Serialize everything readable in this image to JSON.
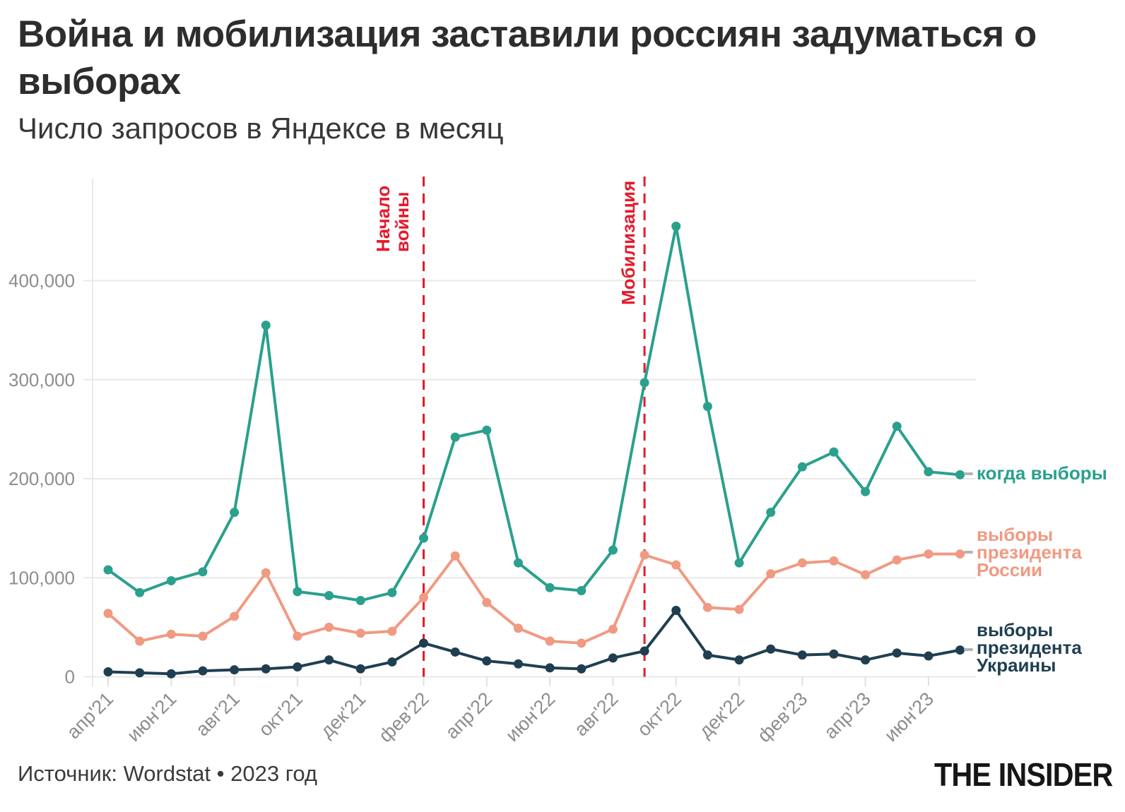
{
  "header": {
    "title": "Война и мобилизация заставили россиян задуматься о выборах",
    "subtitle": "Число запросов в Яндексе в месяц"
  },
  "footer": {
    "source": "Источник: Wordstat • 2023 год",
    "logo": "THE INSIDER"
  },
  "colors": {
    "series_kogda_vybory": "#2aa08d",
    "series_vybory_rossii": "#f09a82",
    "series_vybory_ukrainy": "#1f3f50",
    "event_line": "#e41a2c",
    "grid": "#e8e8e8",
    "axis_labels": "#8d8d8d"
  },
  "chart_data": {
    "type": "line",
    "x": [
      "апр'21",
      "май'21",
      "июн'21",
      "июл'21",
      "авг'21",
      "сен'21",
      "окт'21",
      "ноя'21",
      "дек'21",
      "янв'22",
      "фев'22",
      "мар'22",
      "апр'22",
      "май'22",
      "июн'22",
      "июл'22",
      "авг'22",
      "сен'22",
      "окт'22",
      "ноя'22",
      "дек'22",
      "янв'23",
      "фев'23",
      "мар'23",
      "апр'23",
      "май'23",
      "июн'23",
      "июл'23"
    ],
    "x_tick_every": 2,
    "x_tick_labels": [
      "апр'21",
      "июн'21",
      "авг'21",
      "окт'21",
      "дек'21",
      "фев'22",
      "апр'22",
      "июн'22",
      "авг'22",
      "окт'22",
      "дек'22",
      "фев'23",
      "апр'23",
      "июн'23"
    ],
    "series": [
      {
        "name": "когда выборы",
        "color": "#2aa08d",
        "values": [
          108000,
          85000,
          97000,
          106000,
          166000,
          355000,
          86000,
          82000,
          77000,
          85000,
          140000,
          242000,
          249000,
          115000,
          90000,
          87000,
          128000,
          297000,
          455000,
          273000,
          115000,
          166000,
          212000,
          227000,
          187000,
          253000,
          207000,
          204000
        ]
      },
      {
        "name": "выборы президента России",
        "color": "#f09a82",
        "values": [
          64000,
          36000,
          43000,
          41000,
          61000,
          105000,
          41000,
          50000,
          44000,
          46000,
          80000,
          122000,
          75000,
          49000,
          36000,
          34000,
          48000,
          123000,
          113000,
          70000,
          68000,
          104000,
          115000,
          117000,
          103000,
          118000,
          124000,
          124000
        ]
      },
      {
        "name": "выборы президента Украины",
        "color": "#1f3f50",
        "values": [
          5000,
          4000,
          3000,
          6000,
          7000,
          8000,
          10000,
          17000,
          8000,
          15000,
          34000,
          25000,
          16000,
          13000,
          9000,
          8000,
          19000,
          26000,
          67000,
          22000,
          17000,
          28000,
          22000,
          23000,
          17000,
          24000,
          21000,
          27000
        ]
      }
    ],
    "ylim": [
      0,
      460000
    ],
    "yticks": [
      0,
      100000,
      200000,
      300000,
      400000
    ],
    "grid": "horizontal",
    "legend_position": "right",
    "annotations": [
      {
        "label": "Начало войны",
        "x": "фев'22",
        "color": "#e41a2c"
      },
      {
        "label": "Мобилизация",
        "x": "сен'22",
        "color": "#e41a2c"
      }
    ]
  }
}
